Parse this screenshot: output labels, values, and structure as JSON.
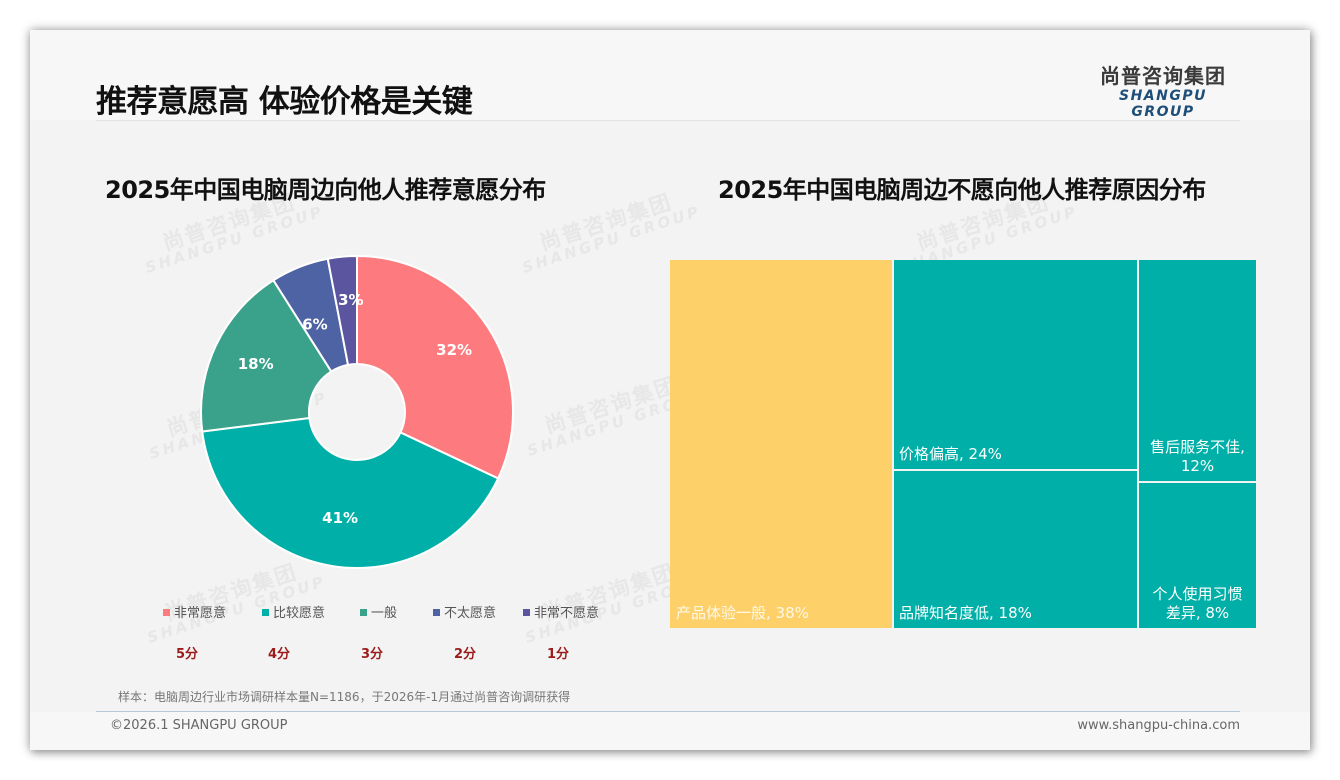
{
  "header": {
    "title": "推荐意愿高 体验价格是关键",
    "logo_cn": "尚普咨询集团",
    "logo_en": "SHANGPU GROUP"
  },
  "watermark": {
    "cn": "尚普咨询集团",
    "en": "SHANGPU GROUP"
  },
  "left_chart": {
    "title": "2025年中国电脑周边向他人推荐意愿分布",
    "legend": [
      {
        "label": "非常愿意",
        "score": "5分"
      },
      {
        "label": "比较愿意",
        "score": "4分"
      },
      {
        "label": "一般",
        "score": "3分"
      },
      {
        "label": "不太愿意",
        "score": "2分"
      },
      {
        "label": "非常不愿意",
        "score": "1分"
      }
    ],
    "slice_labels": [
      "32%",
      "41%",
      "18%",
      "6%",
      "3%"
    ]
  },
  "right_chart": {
    "title": "2025年中国电脑周边不愿向他人推荐原因分布",
    "tiles": [
      {
        "label": "产品体验一般, 38%"
      },
      {
        "label": "价格偏高, 24%"
      },
      {
        "label": "品牌知名度低, 18%"
      },
      {
        "label": "售后服务不佳, 12%",
        "line1": "售后服务不佳,",
        "line2": "12%"
      },
      {
        "label": "个人使用习惯差异, 8%",
        "line1": "个人使用习惯",
        "line2": "差异, 8%"
      }
    ]
  },
  "footer": {
    "note": "样本：电脑周边行业市场调研样本量N=1186，于2026年-1月通过尚普咨询调研获得",
    "copyright": "©2026.1 SHANGPU GROUP",
    "website": "www.shangpu-china.com"
  },
  "colors": {
    "very_willing": "#fd7b7e",
    "willing": "#00b0a8",
    "neutral": "#3aa18b",
    "unwilling": "#4e63a3",
    "very_unwilling": "#5b55a0",
    "treemap_yellow": "#fdd06a",
    "treemap_teal": "#00b0a8",
    "score_red": "#9b1b1b"
  },
  "chart_data": [
    {
      "type": "pie",
      "variant": "donut",
      "title": "2025年中国电脑周边向他人推荐意愿分布",
      "categories": [
        "非常愿意",
        "比较愿意",
        "一般",
        "不太愿意",
        "非常不愿意"
      ],
      "scores": [
        "5分",
        "4分",
        "3分",
        "2分",
        "1分"
      ],
      "values": [
        32,
        41,
        18,
        6,
        3
      ],
      "unit": "%",
      "legend_position": "bottom"
    },
    {
      "type": "treemap",
      "title": "2025年中国电脑周边不愿向他人推荐原因分布",
      "categories": [
        "产品体验一般",
        "价格偏高",
        "品牌知名度低",
        "售后服务不佳",
        "个人使用习惯差异"
      ],
      "values": [
        38,
        24,
        18,
        12,
        8
      ],
      "unit": "%"
    }
  ]
}
